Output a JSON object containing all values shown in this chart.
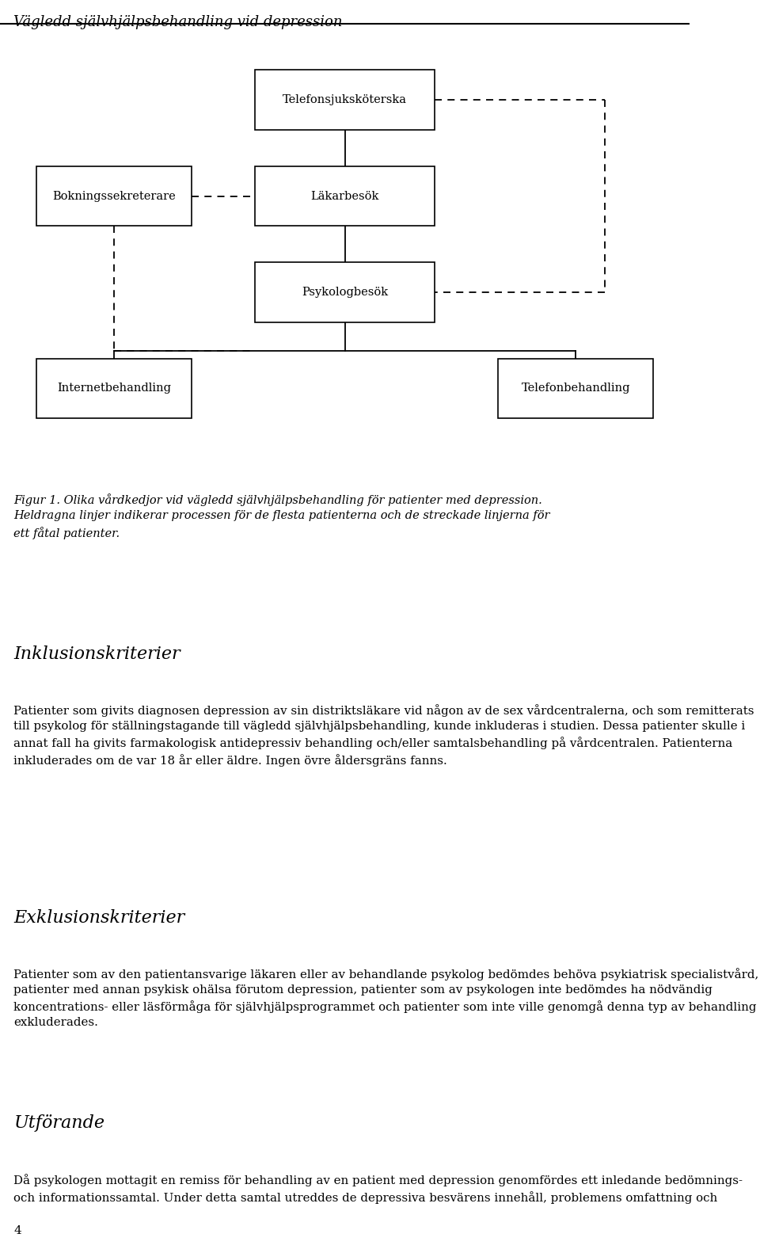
{
  "page_title": "Vägledd självhjälpsbehandling vid depression",
  "page_number": "4",
  "bg_color": "#ffffff",
  "text_color": "#000000",
  "figure_caption": "Figur 1. Olika vårdkedjor vid vägledd självhjälpsbehandling för patienter med depression.\nHeldragna linjer indikerar processen för de flesta patienterna och de streckade linjerna för\nett fåtal patienter.",
  "section1_title": "Inklusionskriterier",
  "section1_body": "Patienter som givits diagnosen depression av sin distriktsläkare vid någon av de sex vårdcentralerna, och som remitterats till psykolog för ställningstagande till vägledd självhjälpsbehandling, kunde inkluderas i studien. Dessa patienter skulle i annat fall ha givits farmakologisk antidepressiv behandling och/eller samtalsbehandling på vårdcentralen. Patienterna inkluderades om de var 18 år eller äldre. Ingen övre åldersgräns fanns.",
  "section2_title": "Exklusionskriterier",
  "section2_body": "Patienter som av den patientansvarige läkaren eller av behandlande psykolog bedömdes behöva psykiatrisk specialistvård, patienter med annan psykisk ohälsa förutom depression, patienter som av psykologen inte bedömdes ha nödvändig koncentrations- eller läsförmåga för självhjälpsprogrammet och patienter som inte ville genomgå denna typ av behandling exkluderades.",
  "section3_title": "Utförande",
  "section3_body": "Då psykologen mottagit en remiss för behandling av en patient med depression genomfördes ett inledande bedömnings- och informationssamtal. Under detta samtal utreddes de depressiva besvärens innehåll, problemens omfattning och"
}
